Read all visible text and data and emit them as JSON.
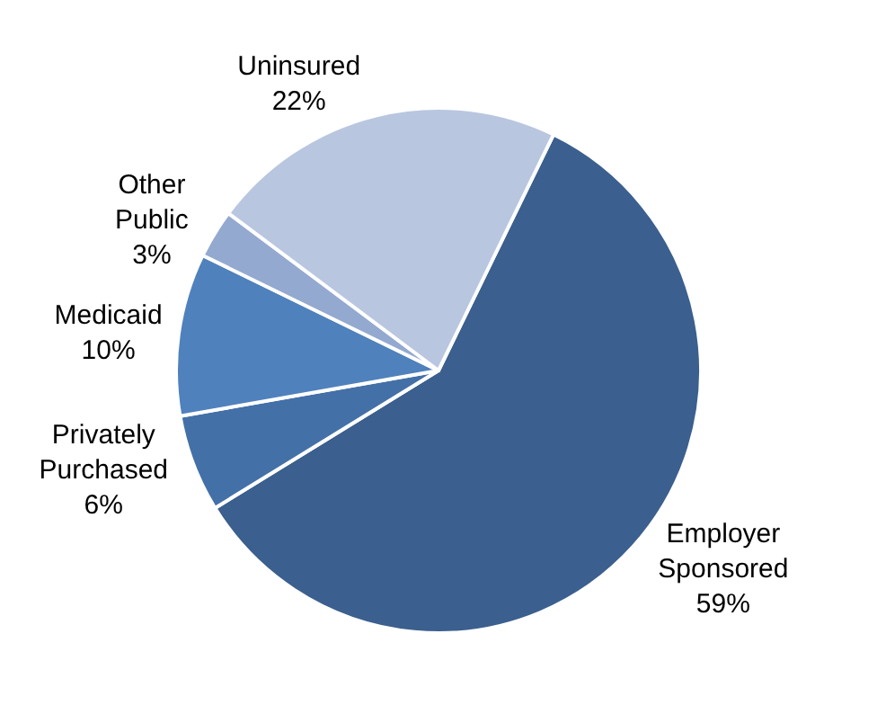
{
  "chart_data": {
    "type": "pie",
    "categories": [
      "Employer Sponsored",
      "Privately Purchased",
      "Medicaid",
      "Other Public",
      "Uninsured"
    ],
    "values": [
      59,
      6,
      10,
      3,
      22
    ],
    "colors": [
      "#3b5f8e",
      "#4470a8",
      "#4f81bd",
      "#94a9d0",
      "#b9c6e0"
    ],
    "value_labels": [
      "59%",
      "6%",
      "10%",
      "3%",
      "22%"
    ]
  }
}
